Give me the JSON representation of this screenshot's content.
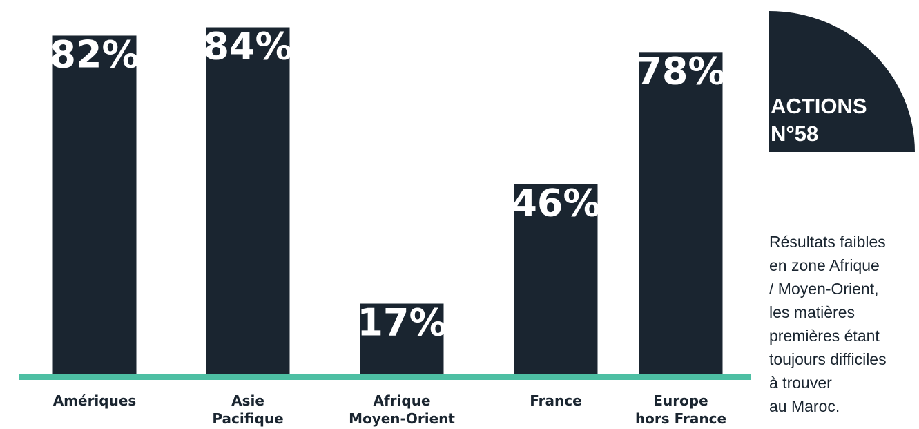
{
  "chart_data": {
    "type": "bar",
    "categories": [
      "Amériques",
      "Asie Pacifique",
      "Afrique Moyen-Orient",
      "France",
      "Europe hors France"
    ],
    "category_lines": [
      [
        "Amériques"
      ],
      [
        "Asie",
        "Pacifique"
      ],
      [
        "Afrique",
        "Moyen-Orient"
      ],
      [
        "France"
      ],
      [
        "Europe",
        "hors France"
      ]
    ],
    "values": [
      82,
      84,
      17,
      46,
      78
    ],
    "value_labels": [
      "82%",
      "84%",
      "17%",
      "46%",
      "78%"
    ],
    "ylim": [
      0,
      100
    ],
    "grid": false,
    "legend": "none"
  },
  "badge": {
    "line1": "ACTIONS",
    "line2": "N°58"
  },
  "note": {
    "lines": [
      "Résultats faibles",
      "en zone Afrique",
      "/ Moyen-Orient,",
      "les matières",
      "premières étant",
      "toujours difficiles",
      "à trouver",
      "au Maroc."
    ]
  },
  "colors": {
    "bar": "#1a2530",
    "baseline": "#4dbfa3",
    "text": "#1a2530"
  }
}
